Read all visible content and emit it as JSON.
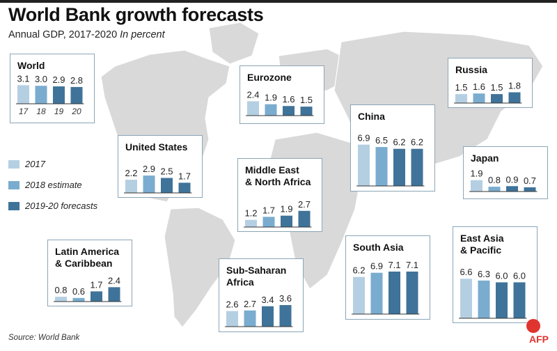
{
  "title": "World Bank growth forecasts",
  "subtitle": "Annual GDP, 2017-2020",
  "unit": "In percent",
  "legend": [
    {
      "label": "2017",
      "color": "#b5cfe2"
    },
    {
      "label": "2018 estimate",
      "color": "#7aaccf"
    },
    {
      "label": "2019-20 forecasts",
      "color": "#3f7399"
    }
  ],
  "source": "Source: World Bank",
  "logo_text": "AFP",
  "colors": {
    "y2017": "#b5cfe2",
    "y2018": "#7aaccf",
    "forecast": "#3f7399",
    "map": "#d6d6d6",
    "border": "#8aa6b5"
  },
  "chart_data": [
    {
      "type": "bar",
      "title": "World",
      "categories": [
        "17",
        "18",
        "19",
        "20"
      ],
      "values": [
        3.1,
        3.0,
        2.9,
        2.8
      ],
      "show_year_labels": true
    },
    {
      "type": "bar",
      "title": "Eurozone",
      "categories": [
        "2017",
        "2018",
        "2019",
        "2020"
      ],
      "values": [
        2.4,
        1.9,
        1.6,
        1.5
      ]
    },
    {
      "type": "bar",
      "title": "China",
      "categories": [
        "2017",
        "2018",
        "2019",
        "2020"
      ],
      "values": [
        6.9,
        6.5,
        6.2,
        6.2
      ]
    },
    {
      "type": "bar",
      "title": "Russia",
      "categories": [
        "2017",
        "2018",
        "2019",
        "2020"
      ],
      "values": [
        1.5,
        1.6,
        1.5,
        1.8
      ]
    },
    {
      "type": "bar",
      "title": "United States",
      "categories": [
        "2017",
        "2018",
        "2019",
        "2020"
      ],
      "values": [
        2.2,
        2.9,
        2.5,
        1.7
      ]
    },
    {
      "type": "bar",
      "title": "Middle East\n& North Africa",
      "categories": [
        "2017",
        "2018",
        "2019",
        "2020"
      ],
      "values": [
        1.2,
        1.7,
        1.9,
        2.7
      ]
    },
    {
      "type": "bar",
      "title": "Japan",
      "categories": [
        "2017",
        "2018",
        "2019",
        "2020"
      ],
      "values": [
        1.9,
        0.8,
        0.9,
        0.7
      ]
    },
    {
      "type": "bar",
      "title": "Latin America\n& Caribbean",
      "categories": [
        "2017",
        "2018",
        "2019",
        "2020"
      ],
      "values": [
        0.8,
        0.6,
        1.7,
        2.4
      ]
    },
    {
      "type": "bar",
      "title": "Sub-Saharan\nAfrica",
      "categories": [
        "2017",
        "2018",
        "2019",
        "2020"
      ],
      "values": [
        2.6,
        2.7,
        3.4,
        3.6
      ]
    },
    {
      "type": "bar",
      "title": "South Asia",
      "categories": [
        "2017",
        "2018",
        "2019",
        "2020"
      ],
      "values": [
        6.2,
        6.9,
        7.1,
        7.1
      ]
    },
    {
      "type": "bar",
      "title": "East Asia\n& Pacific",
      "categories": [
        "2017",
        "2018",
        "2019",
        "2020"
      ],
      "values": [
        6.6,
        6.3,
        6.0,
        6.0
      ]
    }
  ]
}
